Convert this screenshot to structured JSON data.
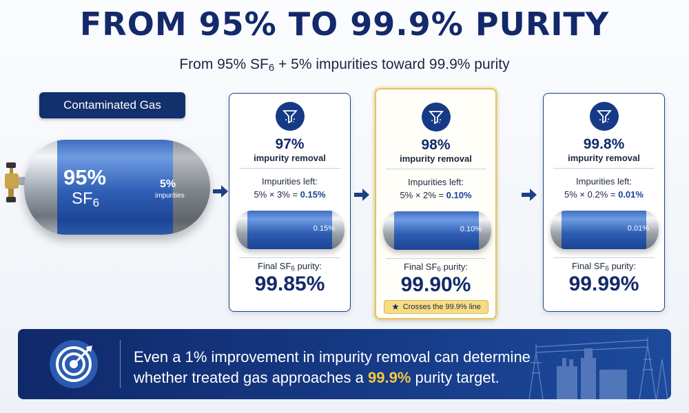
{
  "header": {
    "title": "FROM 95% TO 99.9% PURITY",
    "subtitle_a": "From 95% SF",
    "subtitle_sub": "6",
    "subtitle_b": " + 5% impurities toward 99.9% purity"
  },
  "source": {
    "tag": "Contaminated Gas",
    "sf6_pct": "95%",
    "sf6_label": "SF",
    "sf6_sub": "6",
    "impurity_pct": "5%",
    "impurity_label": "impurities"
  },
  "stages": [
    {
      "rate": "97%",
      "rate_label": "impurity removal",
      "impurities_label": "Impurities left:",
      "calc": "5% × 3% = ",
      "calc_result": "0.15%",
      "cylinder_value": "0.15%",
      "final_label_a": "Final SF",
      "final_label_sub": "6",
      "final_label_b": " purity:",
      "final_value": "99.85%"
    },
    {
      "rate": "98%",
      "rate_label": "impurity removal",
      "impurities_label": "Impurities left:",
      "calc": "5% × 2% = ",
      "calc_result": "0.10%",
      "cylinder_value": "0.10%",
      "final_label_a": "Final SF",
      "final_label_sub": "6",
      "final_label_b": " purity:",
      "final_value": "99.90%",
      "badge": "Crosses the 99.9% line"
    },
    {
      "rate": "99.8%",
      "rate_label": "impurity removal",
      "impurities_label": "Impurities left:",
      "calc": "5% × 0.2% = ",
      "calc_result": "0.01%",
      "cylinder_value": "0.01%",
      "final_label_a": "Final SF",
      "final_label_sub": "6",
      "final_label_b": " purity:",
      "final_value": "99.99%"
    }
  ],
  "banner": {
    "line1": "Even a 1% improvement in impurity removal can determine",
    "line2_a": "whether treated gas approaches a ",
    "line2_highlight": "99.9%",
    "line2_b": " purity target."
  },
  "icons": {
    "filter": "filter-icon",
    "target": "target-icon",
    "star": "star-icon",
    "arrow": "arrow-right-icon",
    "valve": "valve-icon",
    "substation": "substation-illustration"
  },
  "colors": {
    "navy": "#13296b",
    "blue": "#2f5fb5",
    "highlight": "#f5c842"
  }
}
